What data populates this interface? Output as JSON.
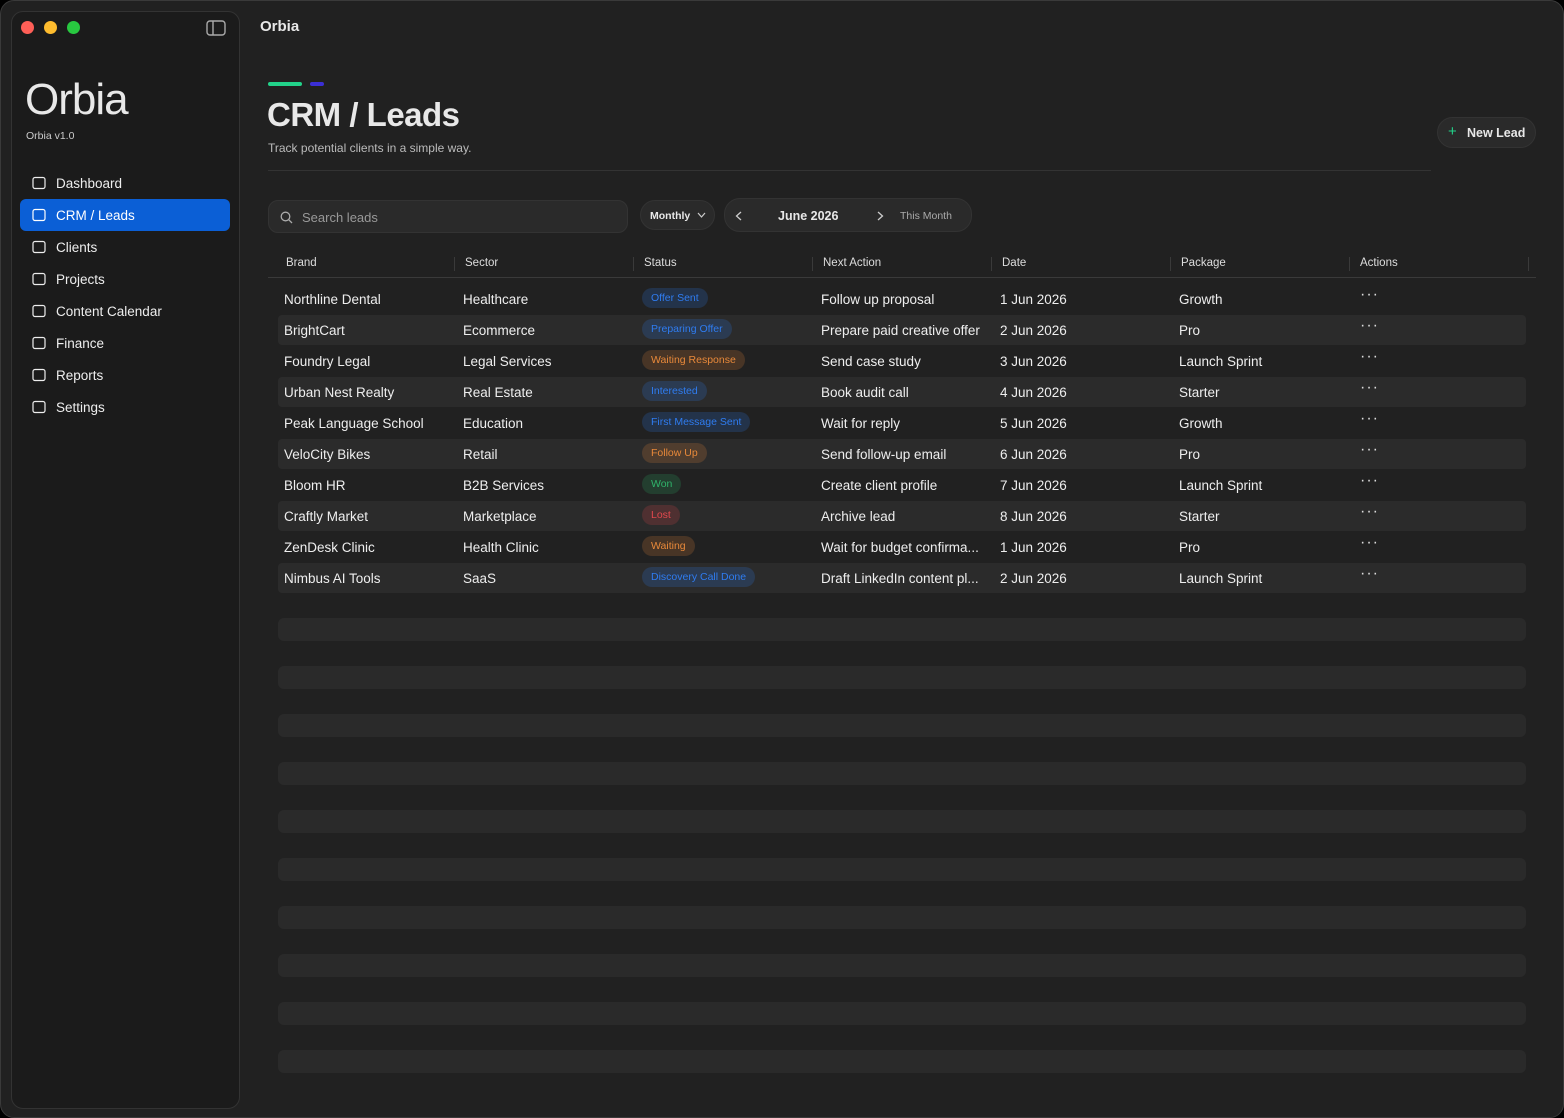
{
  "window": {
    "title": "Orbia"
  },
  "sidebar": {
    "logo": "Orbia",
    "version": "Orbia v1.0",
    "active": 1,
    "nav": [
      "Dashboard",
      "CRM / Leads",
      "Clients",
      "Projects",
      "Content Calendar",
      "Finance",
      "Reports",
      "Settings"
    ]
  },
  "header": {
    "title": "CRM / Leads",
    "subtitle": "Track potential clients in a simple way.",
    "button": "New Lead"
  },
  "toolbar": {
    "search_placeholder": "Search leads",
    "period": "Monthly",
    "month": "June 2026",
    "this_month": "This Month"
  },
  "table": {
    "columns": [
      "Brand",
      "Sector",
      "Status",
      "Next Action",
      "Date",
      "Package",
      "Actions"
    ],
    "rows": [
      {
        "brand": "Northline Dental",
        "sector": "Healthcare",
        "status": "Offer Sent",
        "status_color": "#2f7cf0",
        "next_action": "Follow up proposal",
        "date": "1 Jun 2026",
        "package": "Growth"
      },
      {
        "brand": "BrightCart",
        "sector": "Ecommerce",
        "status": "Preparing Offer",
        "status_color": "#2f7cf0",
        "next_action": "Prepare paid creative offer",
        "date": "2 Jun 2026",
        "package": "Pro"
      },
      {
        "brand": "Foundry Legal",
        "sector": "Legal Services",
        "status": "Waiting Response",
        "status_color": "#e8893a",
        "next_action": "Send case study",
        "date": "3 Jun 2026",
        "package": "Launch Sprint"
      },
      {
        "brand": "Urban Nest Realty",
        "sector": "Real Estate",
        "status": "Interested",
        "status_color": "#2f7cf0",
        "next_action": "Book audit call",
        "date": "4 Jun 2026",
        "package": "Starter"
      },
      {
        "brand": "Peak Language School",
        "sector": "Education",
        "status": "First Message Sent",
        "status_color": "#2f7cf0",
        "next_action": "Wait for reply",
        "date": "5 Jun 2026",
        "package": "Growth"
      },
      {
        "brand": "VeloCity Bikes",
        "sector": "Retail",
        "status": "Follow Up",
        "status_color": "#e8893a",
        "next_action": "Send follow-up email",
        "date": "6 Jun 2026",
        "package": "Pro"
      },
      {
        "brand": "Bloom HR",
        "sector": "B2B Services",
        "status": "Won",
        "status_color": "#2fb36a",
        "next_action": "Create client profile",
        "date": "7 Jun 2026",
        "package": "Launch Sprint"
      },
      {
        "brand": "Craftly Market",
        "sector": "Marketplace",
        "status": "Lost",
        "status_color": "#e0484d",
        "next_action": "Archive lead",
        "date": "8 Jun 2026",
        "package": "Starter"
      },
      {
        "brand": "ZenDesk Clinic",
        "sector": "Health Clinic",
        "status": "Waiting",
        "status_color": "#e8893a",
        "next_action": "Wait for budget confirma...",
        "date": "1 Jun 2026",
        "package": "Pro"
      },
      {
        "brand": "Nimbus AI Tools",
        "sector": "SaaS",
        "status": "Discovery Call Done",
        "status_color": "#2f7cf0",
        "next_action": "Draft LinkedIn content pl...",
        "date": "2 Jun 2026",
        "package": "Launch Sprint"
      }
    ]
  }
}
